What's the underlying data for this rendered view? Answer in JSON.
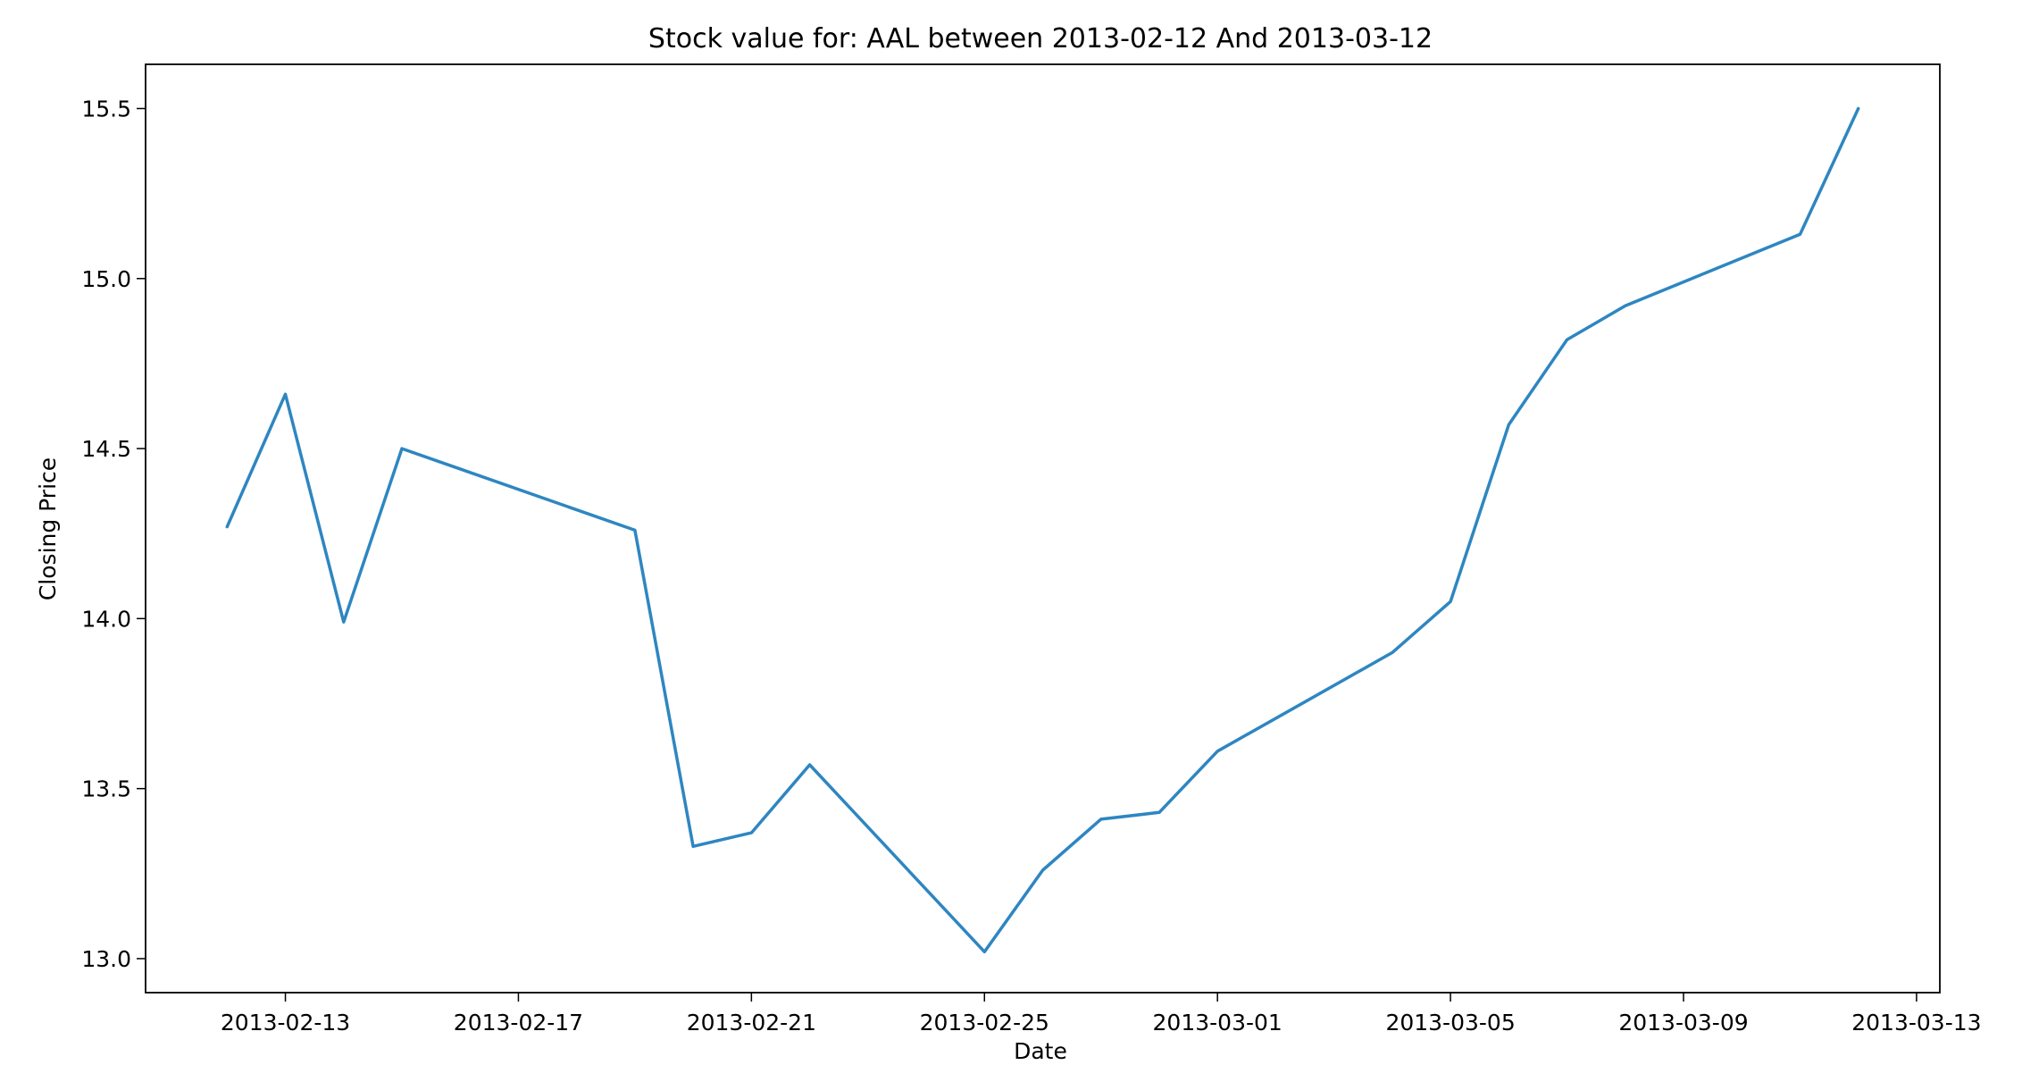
{
  "chart_data": {
    "type": "line",
    "title": "Stock value for: AAL between 2013-02-12 And 2013-03-12",
    "xlabel": "Date",
    "ylabel": "Closing Price",
    "x_ticks": [
      "2013-02-13",
      "2013-02-17",
      "2013-02-21",
      "2013-02-25",
      "2013-03-01",
      "2013-03-05",
      "2013-03-09",
      "2013-03-13"
    ],
    "y_ticks": [
      13.0,
      13.5,
      14.0,
      14.5,
      15.0,
      15.5
    ],
    "xlim": [
      "2013-02-10.6",
      "2013-03-13.4"
    ],
    "ylim": [
      12.9,
      15.63
    ],
    "grid": false,
    "colors": {
      "line": "#2e86c1"
    },
    "series": [
      {
        "x": [
          "2013-02-12",
          "2013-02-13",
          "2013-02-14",
          "2013-02-15",
          "2013-02-19",
          "2013-02-20",
          "2013-02-21",
          "2013-02-22",
          "2013-02-25",
          "2013-02-26",
          "2013-02-27",
          "2013-02-28",
          "2013-03-01",
          "2013-03-04",
          "2013-03-05",
          "2013-03-06",
          "2013-03-07",
          "2013-03-08",
          "2013-03-11",
          "2013-03-12"
        ],
        "values": [
          14.27,
          14.66,
          13.99,
          14.5,
          14.26,
          13.33,
          13.37,
          13.57,
          13.02,
          13.26,
          13.41,
          13.43,
          13.61,
          13.9,
          14.05,
          14.57,
          14.82,
          14.92,
          15.13,
          15.5
        ]
      }
    ]
  }
}
